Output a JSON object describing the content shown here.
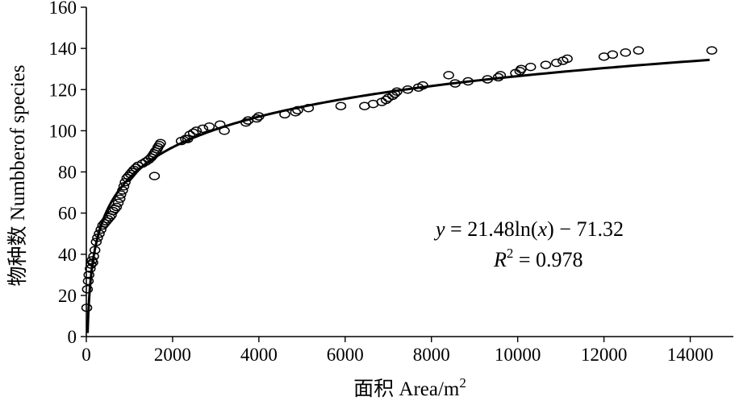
{
  "chart_data": {
    "type": "scatter",
    "xlabel": "面积 Area/m",
    "xlabel_sup": "2",
    "ylabel": "物种数 Numbberof species",
    "xlim": [
      0,
      15000
    ],
    "ylim": [
      0,
      160
    ],
    "xticks": [
      "0",
      "2000",
      "4000",
      "6000",
      "8000",
      "10000",
      "12000",
      "14000"
    ],
    "xtick_values": [
      0,
      2000,
      4000,
      6000,
      8000,
      10000,
      12000,
      14000
    ],
    "yticks": [
      "0",
      "20",
      "40",
      "60",
      "80",
      "100",
      "120",
      "140",
      "160"
    ],
    "ytick_values": [
      0,
      20,
      40,
      60,
      80,
      100,
      120,
      140,
      160
    ],
    "grid": false,
    "equation": {
      "line1": {
        "y": "y",
        "rhs": " = 21.48ln(",
        "x": "x",
        "tail": ") −  71.32"
      },
      "line2": {
        "r": "R",
        "sup": "2",
        "rhs": " = 0.978"
      }
    },
    "fit": {
      "a": 21.48,
      "b": -71.32,
      "x_from": 30,
      "x_to": 14450
    },
    "points": [
      [
        10,
        14
      ],
      [
        25,
        23
      ],
      [
        45,
        27
      ],
      [
        60,
        30
      ],
      [
        90,
        33
      ],
      [
        110,
        35
      ],
      [
        130,
        37
      ],
      [
        150,
        36
      ],
      [
        170,
        39
      ],
      [
        200,
        42
      ],
      [
        230,
        46
      ],
      [
        260,
        48
      ],
      [
        300,
        50
      ],
      [
        340,
        52
      ],
      [
        380,
        54
      ],
      [
        420,
        55
      ],
      [
        460,
        56
      ],
      [
        500,
        57
      ],
      [
        540,
        58
      ],
      [
        580,
        59
      ],
      [
        620,
        61
      ],
      [
        660,
        62
      ],
      [
        700,
        63
      ],
      [
        740,
        65
      ],
      [
        780,
        67
      ],
      [
        800,
        69
      ],
      [
        840,
        71
      ],
      [
        870,
        73
      ],
      [
        900,
        75
      ],
      [
        940,
        77
      ],
      [
        980,
        78
      ],
      [
        1020,
        79
      ],
      [
        1060,
        80
      ],
      [
        1100,
        81
      ],
      [
        1150,
        82
      ],
      [
        1200,
        83
      ],
      [
        1300,
        84
      ],
      [
        1380,
        85
      ],
      [
        1450,
        86
      ],
      [
        1500,
        87
      ],
      [
        1540,
        88
      ],
      [
        1570,
        89
      ],
      [
        1600,
        90
      ],
      [
        1640,
        91
      ],
      [
        1660,
        92
      ],
      [
        1690,
        93
      ],
      [
        1720,
        94
      ],
      [
        1580,
        78
      ],
      [
        2200,
        95
      ],
      [
        2300,
        96
      ],
      [
        2350,
        96
      ],
      [
        2400,
        98
      ],
      [
        2480,
        99
      ],
      [
        2550,
        100
      ],
      [
        2700,
        101
      ],
      [
        2850,
        102
      ],
      [
        3100,
        103
      ],
      [
        3200,
        100
      ],
      [
        3700,
        104
      ],
      [
        3750,
        105
      ],
      [
        3950,
        106
      ],
      [
        4000,
        107
      ],
      [
        4600,
        108
      ],
      [
        4850,
        109
      ],
      [
        4900,
        110
      ],
      [
        5150,
        111
      ],
      [
        5900,
        112
      ],
      [
        6450,
        112
      ],
      [
        6650,
        113
      ],
      [
        6850,
        114
      ],
      [
        6950,
        115
      ],
      [
        7000,
        116
      ],
      [
        7100,
        117
      ],
      [
        7150,
        118
      ],
      [
        7200,
        119
      ],
      [
        7450,
        120
      ],
      [
        7700,
        121
      ],
      [
        7800,
        122
      ],
      [
        8400,
        127
      ],
      [
        8550,
        123
      ],
      [
        8850,
        124
      ],
      [
        9300,
        125
      ],
      [
        9550,
        126
      ],
      [
        9600,
        127
      ],
      [
        9950,
        128
      ],
      [
        10050,
        129
      ],
      [
        10080,
        130
      ],
      [
        10300,
        131
      ],
      [
        10650,
        132
      ],
      [
        10900,
        133
      ],
      [
        11050,
        134
      ],
      [
        11150,
        135
      ],
      [
        12000,
        136
      ],
      [
        12200,
        137
      ],
      [
        12500,
        138
      ],
      [
        12800,
        139
      ],
      [
        14500,
        139
      ]
    ]
  }
}
